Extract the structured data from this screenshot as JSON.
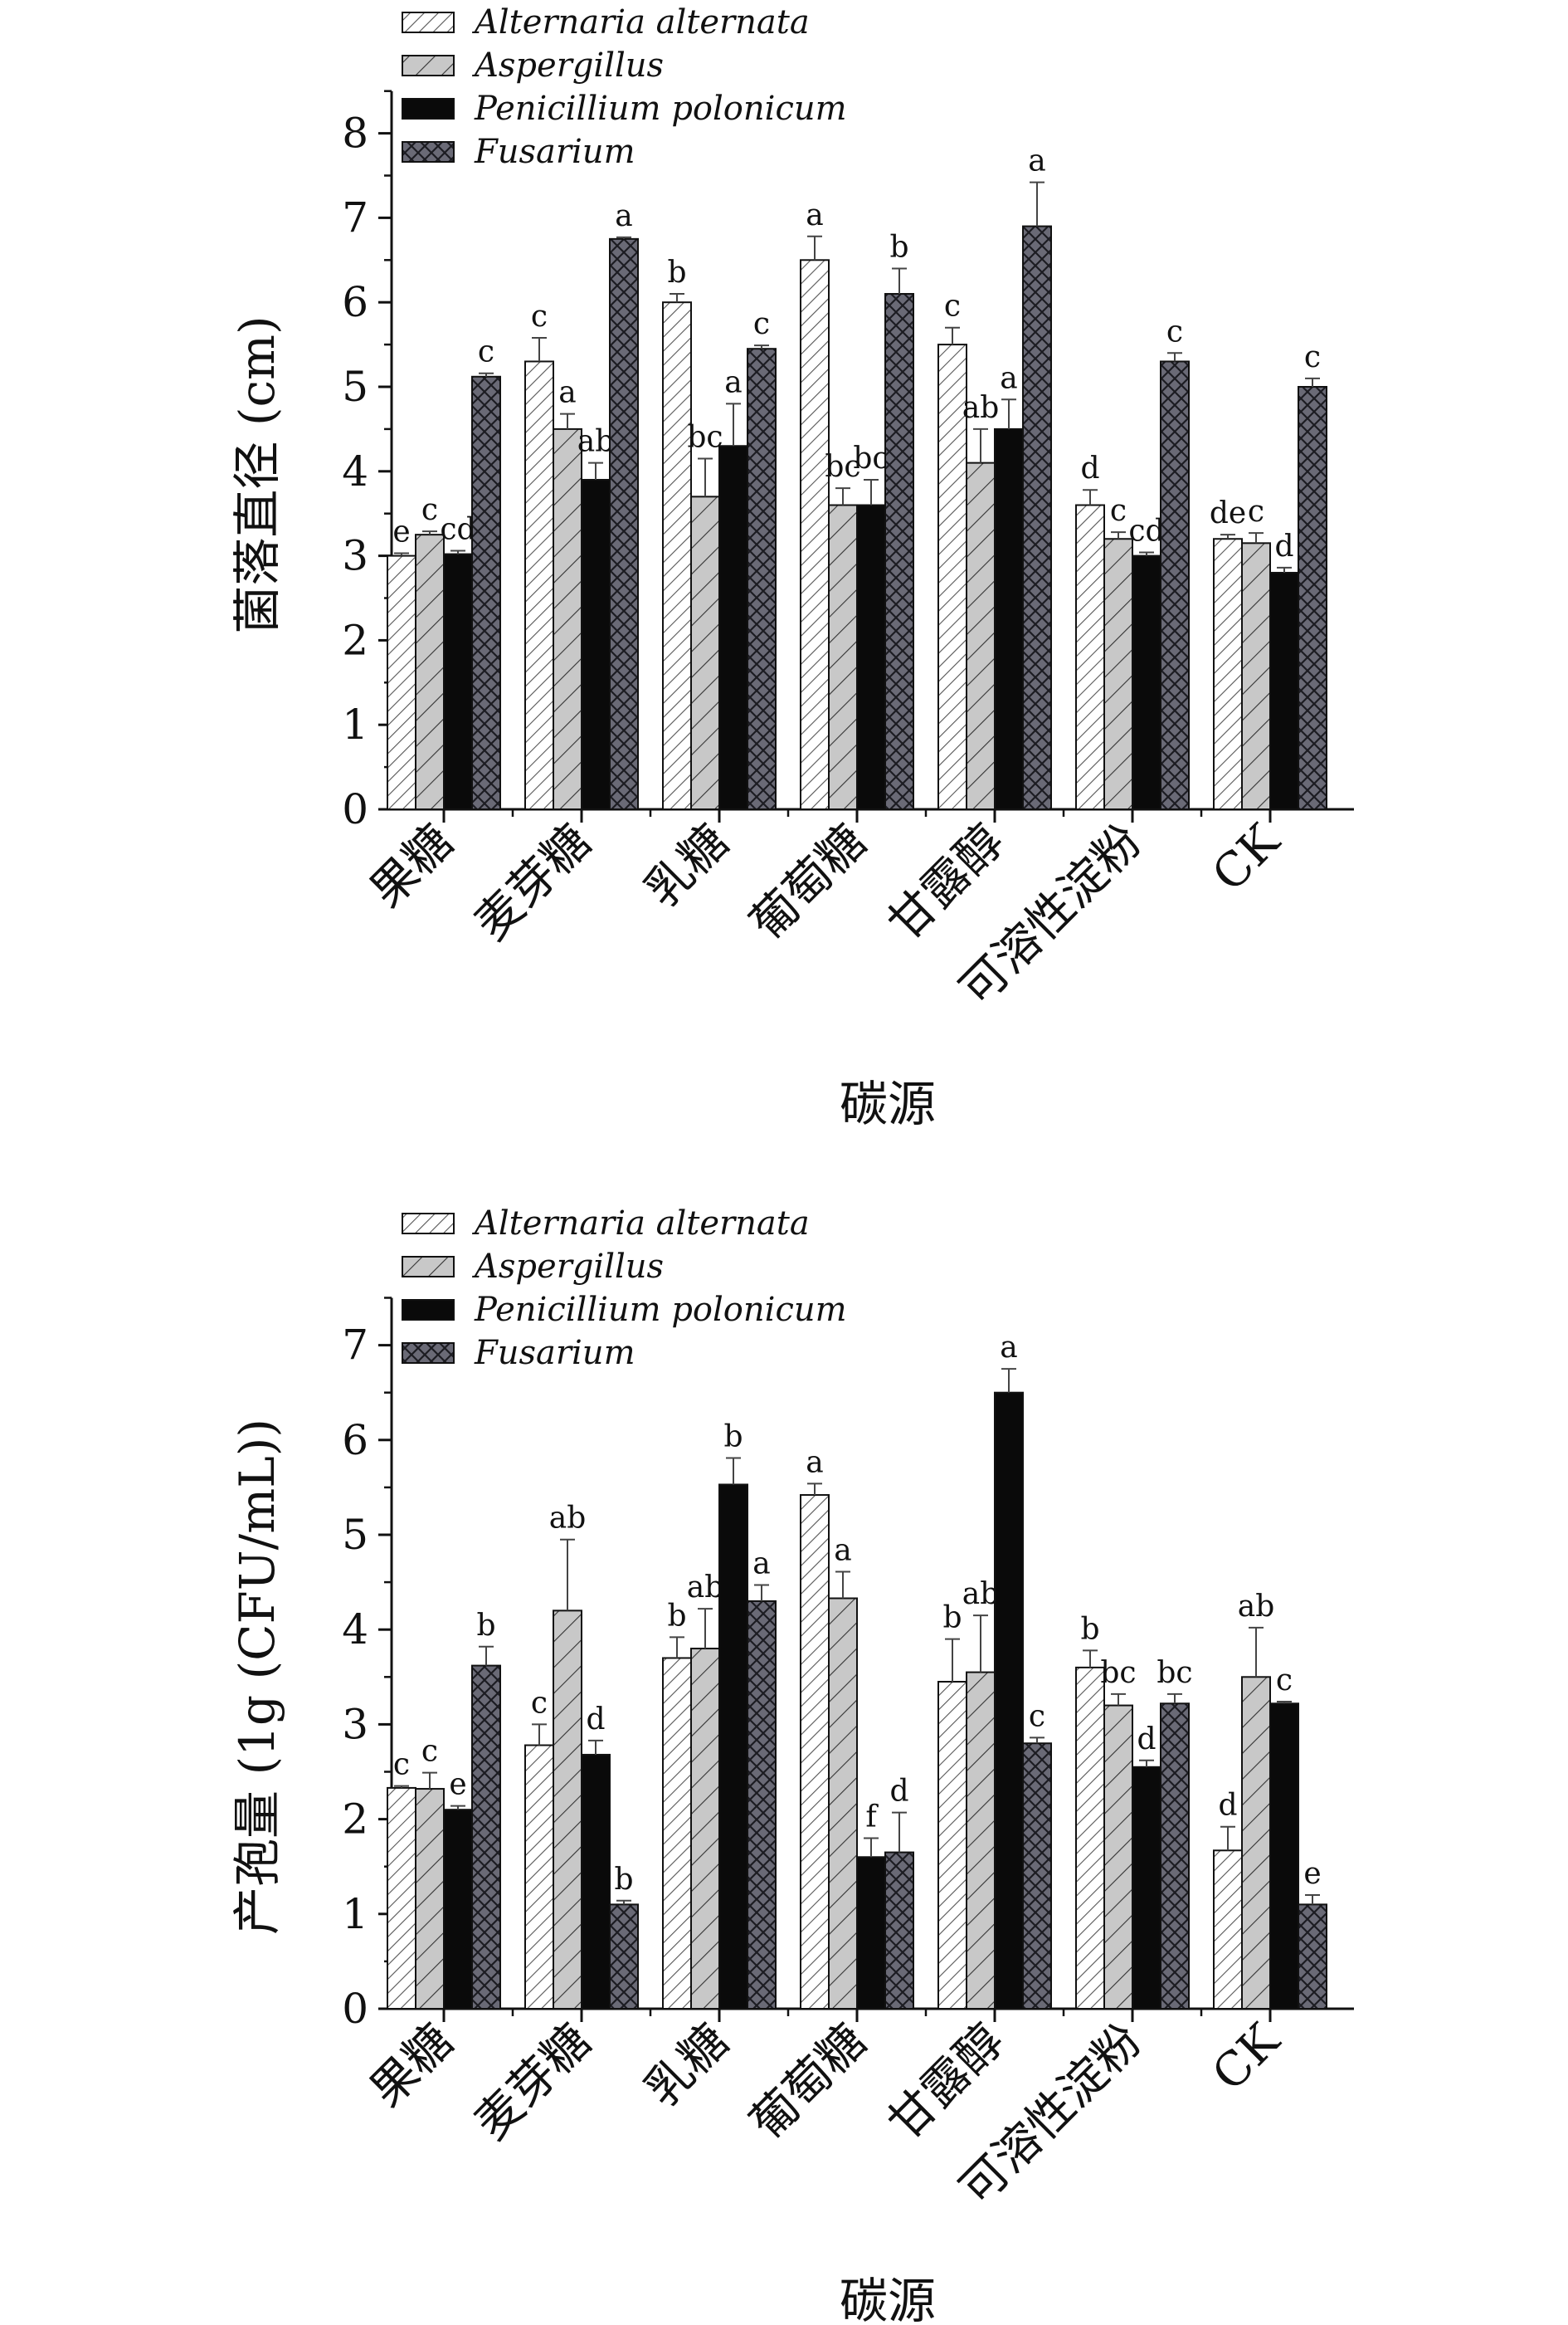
{
  "figures": [
    {
      "series_names": [
        "Alternaria alternata",
        "Aspergillus",
        "Penicillium polonicum",
        "Fusarium"
      ],
      "xlabel": "碳源",
      "ylabel": "菌落直径 (cm)",
      "categories": [
        "果糖",
        "麦芽糖",
        "乳糖",
        "葡萄糖",
        "甘露醇",
        "可溶性淀粉",
        "CK"
      ],
      "y_ticks": [
        "0",
        "1",
        "2",
        "3",
        "4",
        "5",
        "6",
        "7",
        "8"
      ]
    },
    {
      "series_names": [
        "Alternaria alternata",
        "Aspergillus",
        "Penicillium polonicum",
        "Fusarium"
      ],
      "xlabel": "碳源",
      "ylabel": "产孢量 (1g (CFU/mL))",
      "categories": [
        "果糖",
        "麦芽糖",
        "乳糖",
        "葡萄糖",
        "甘露醇",
        "可溶性淀粉",
        "CK"
      ],
      "y_ticks": [
        "0",
        "1",
        "2",
        "3",
        "4",
        "5",
        "6",
        "7"
      ]
    }
  ],
  "chart_data": [
    {
      "type": "bar",
      "categories": [
        "果糖",
        "麦芽糖",
        "乳糖",
        "葡萄糖",
        "甘露醇",
        "可溶性淀粉",
        "CK"
      ],
      "xlabel": "碳源",
      "ylabel": "菌落直径 (cm)",
      "ylim": [
        0,
        8.5
      ],
      "legend": "top-left",
      "series": [
        {
          "name": "Alternaria alternata",
          "pattern": "light-hatch",
          "values": [
            3.0,
            5.3,
            6.0,
            6.5,
            5.5,
            3.6,
            3.2
          ],
          "errors": [
            0.03,
            0.28,
            0.1,
            0.28,
            0.2,
            0.18,
            0.05
          ],
          "labels": [
            "e",
            "c",
            "b",
            "a",
            "c",
            "d",
            "de"
          ]
        },
        {
          "name": "Aspergillus",
          "pattern": "grey-hatch",
          "values": [
            3.25,
            4.5,
            3.7,
            3.6,
            4.1,
            3.2,
            3.15
          ],
          "errors": [
            0.04,
            0.18,
            0.45,
            0.2,
            0.4,
            0.08,
            0.12
          ],
          "labels": [
            "c",
            "a",
            "bc",
            "bc",
            "ab",
            "c",
            "c"
          ]
        },
        {
          "name": "Penicillium polonicum",
          "pattern": "solid-black",
          "values": [
            3.02,
            3.9,
            4.3,
            3.6,
            4.5,
            3.0,
            2.8
          ],
          "errors": [
            0.04,
            0.2,
            0.5,
            0.3,
            0.35,
            0.04,
            0.06
          ],
          "labels": [
            "cd",
            "ab",
            "a",
            "bc",
            "a",
            "cd",
            "d"
          ]
        },
        {
          "name": "Fusarium",
          "pattern": "crosshatch",
          "values": [
            5.12,
            6.75,
            5.45,
            6.1,
            6.9,
            5.3,
            5.0
          ],
          "errors": [
            0.04,
            0.02,
            0.04,
            0.3,
            0.52,
            0.1,
            0.1
          ],
          "labels": [
            "c",
            "a",
            "c",
            "b",
            "a",
            "c",
            "c"
          ]
        }
      ]
    },
    {
      "type": "bar",
      "categories": [
        "果糖",
        "麦芽糖",
        "乳糖",
        "葡萄糖",
        "甘露醇",
        "可溶性淀粉",
        "CK"
      ],
      "xlabel": "碳源",
      "ylabel": "产孢量 (1g (CFU/mL))",
      "ylim": [
        0,
        7.5
      ],
      "legend": "top-left",
      "series": [
        {
          "name": "Alternaria alternata",
          "pattern": "light-hatch",
          "values": [
            2.33,
            2.78,
            3.7,
            5.42,
            3.45,
            3.6,
            1.67
          ],
          "errors": [
            0.02,
            0.22,
            0.22,
            0.12,
            0.45,
            0.18,
            0.25
          ],
          "labels": [
            "c",
            "c",
            "b",
            "a",
            "b",
            "b",
            "d"
          ]
        },
        {
          "name": "Aspergillus",
          "pattern": "grey-hatch",
          "values": [
            2.32,
            4.2,
            3.8,
            4.33,
            3.55,
            3.2,
            3.5
          ],
          "errors": [
            0.17,
            0.75,
            0.42,
            0.28,
            0.6,
            0.12,
            0.52
          ],
          "labels": [
            "c",
            "ab",
            "ab",
            "a",
            "ab",
            "bc",
            "ab"
          ]
        },
        {
          "name": "Penicillium polonicum",
          "pattern": "solid-black",
          "values": [
            2.1,
            2.68,
            5.53,
            1.6,
            6.5,
            2.55,
            3.22
          ],
          "errors": [
            0.04,
            0.15,
            0.28,
            0.2,
            0.25,
            0.07,
            0.02
          ],
          "labels": [
            "e",
            "d",
            "b",
            "f",
            "a",
            "d",
            "c"
          ]
        },
        {
          "name": "Fusarium",
          "pattern": "crosshatch",
          "values": [
            3.62,
            1.1,
            4.3,
            1.65,
            2.8,
            3.22,
            1.1
          ],
          "errors": [
            0.2,
            0.04,
            0.17,
            0.42,
            0.06,
            0.1,
            0.1
          ],
          "labels": [
            "b",
            "b",
            "a",
            "d",
            "c",
            "bc",
            "e"
          ]
        }
      ]
    }
  ]
}
